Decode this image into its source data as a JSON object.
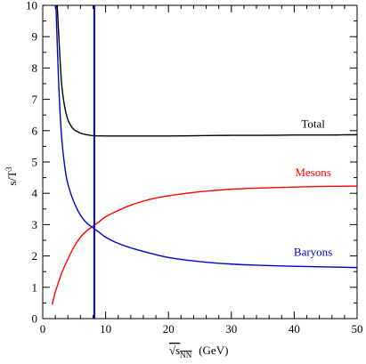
{
  "chart_data": {
    "type": "line",
    "xlabel": "√s_NN (GeV)",
    "xlabel_parts": {
      "main": "√s",
      "sub": "NN",
      "unit": "(GeV)"
    },
    "ylabel": "s/T³",
    "ylabel_parts": {
      "main": "s/T",
      "sup": "3"
    },
    "xlim": [
      0,
      50
    ],
    "ylim": [
      0,
      10
    ],
    "xticks": [
      "0",
      "10",
      "20",
      "30",
      "40",
      "50"
    ],
    "yticks": [
      "0",
      "1",
      "2",
      "3",
      "4",
      "5",
      "6",
      "7",
      "8",
      "9",
      "10"
    ],
    "grid": false,
    "vline": {
      "x": 8.2,
      "color": "#0000cc"
    },
    "series": [
      {
        "name": "Total",
        "color": "#000000",
        "x": [
          2.3,
          2.6,
          3.0,
          3.5,
          4.0,
          4.5,
          5.0,
          6.0,
          7.0,
          8.0,
          10,
          12,
          15,
          20,
          25,
          30,
          35,
          40,
          45,
          50
        ],
        "y": [
          10.0,
          8.85,
          7.5,
          6.75,
          6.35,
          6.15,
          6.03,
          5.92,
          5.87,
          5.84,
          5.83,
          5.83,
          5.83,
          5.83,
          5.84,
          5.85,
          5.85,
          5.86,
          5.86,
          5.87
        ]
      },
      {
        "name": "Mesons",
        "color": "#ff0000",
        "x": [
          1.5,
          2.0,
          2.5,
          3.0,
          4.0,
          5.0,
          6.0,
          7.0,
          8.0,
          9.0,
          10,
          12,
          14,
          16,
          18,
          20,
          25,
          30,
          35,
          40,
          45,
          50
        ],
        "y": [
          0.45,
          0.85,
          1.15,
          1.45,
          1.9,
          2.3,
          2.6,
          2.8,
          2.95,
          3.1,
          3.25,
          3.45,
          3.62,
          3.75,
          3.85,
          3.92,
          4.05,
          4.13,
          4.17,
          4.2,
          4.22,
          4.23
        ]
      },
      {
        "name": "Baryons",
        "color": "#0000cc",
        "x": [
          2.1,
          2.3,
          2.6,
          3.0,
          3.5,
          4.0,
          5.0,
          6.0,
          7.0,
          8.0,
          9.0,
          10,
          12,
          15,
          20,
          25,
          30,
          35,
          40,
          45,
          50
        ],
        "y": [
          10.0,
          8.8,
          7.2,
          5.8,
          4.85,
          4.3,
          3.7,
          3.3,
          3.05,
          2.9,
          2.75,
          2.6,
          2.4,
          2.2,
          1.95,
          1.82,
          1.74,
          1.7,
          1.67,
          1.65,
          1.63
        ]
      }
    ],
    "labels": [
      {
        "text": "Total",
        "color": "#000000",
        "x": 43,
        "y": 6.1
      },
      {
        "text": "Mesons",
        "color": "#ff0000",
        "x": 43,
        "y": 4.55
      },
      {
        "text": "Baryons",
        "color": "#0000cc",
        "x": 43,
        "y": 2.0
      }
    ]
  }
}
